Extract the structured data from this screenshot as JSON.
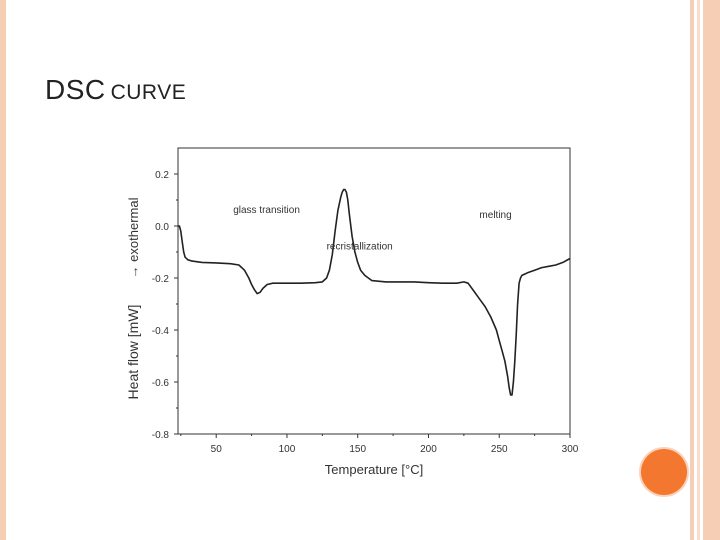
{
  "slide": {
    "title_big": "DSC",
    "title_small": "CURVE",
    "colors": {
      "frame": "#F6CDB5",
      "frame_light": "#F9DCCB",
      "accent_circle": "#F4772F",
      "accent_circle_edge": "#FBD2B8",
      "curve": "#222222"
    }
  },
  "chart_data": {
    "type": "line",
    "title": "",
    "xlabel": "Temperature [°C]",
    "ylabel": "Heat flow [mW]",
    "ylabel_secondary": "→ exothermal",
    "xlim": [
      23,
      300
    ],
    "ylim": [
      -0.8,
      0.3
    ],
    "xticks": [
      50,
      100,
      150,
      200,
      250,
      300
    ],
    "xtick_labels": [
      "50",
      "100",
      "150",
      "200",
      "250",
      "300"
    ],
    "yticks": [
      0.2,
      0.0,
      -0.2,
      -0.4,
      -0.6,
      -0.8
    ],
    "ytick_labels": [
      "0.2",
      "0.0",
      "-0.2",
      "-0.4",
      "-0.6",
      "-0.8"
    ],
    "grid": false,
    "legend": false,
    "annotations": [
      {
        "text": "glass transition",
        "x": 62,
        "y": 0.05
      },
      {
        "text": "recristallization",
        "x": 128,
        "y": -0.09
      },
      {
        "text": "melting",
        "x": 236,
        "y": 0.03
      }
    ],
    "series": [
      {
        "x": [
          23,
          24,
          25,
          26,
          27,
          28,
          30,
          33,
          40,
          50,
          60,
          66,
          70,
          73,
          75,
          77,
          79,
          81,
          83,
          86,
          90,
          95,
          100,
          110,
          120,
          125,
          128,
          130,
          132,
          134,
          136,
          138,
          139,
          140,
          141,
          142,
          143,
          144,
          146,
          148,
          150,
          152,
          155,
          160,
          170,
          180,
          190,
          200,
          210,
          220,
          225,
          228,
          232,
          236,
          240,
          244,
          248,
          250,
          252,
          254,
          256,
          257,
          258,
          259,
          260,
          261,
          262,
          263,
          264,
          265,
          266,
          268,
          270,
          275,
          280,
          285,
          290,
          295,
          300
        ],
        "y": [
          0.0,
          0.0,
          -0.02,
          -0.06,
          -0.1,
          -0.12,
          -0.13,
          -0.135,
          -0.14,
          -0.142,
          -0.145,
          -0.15,
          -0.17,
          -0.2,
          -0.225,
          -0.245,
          -0.26,
          -0.255,
          -0.24,
          -0.225,
          -0.22,
          -0.22,
          -0.22,
          -0.22,
          -0.218,
          -0.215,
          -0.2,
          -0.17,
          -0.11,
          -0.02,
          0.06,
          0.11,
          0.13,
          0.14,
          0.14,
          0.13,
          0.1,
          0.05,
          -0.04,
          -0.1,
          -0.14,
          -0.17,
          -0.19,
          -0.21,
          -0.215,
          -0.215,
          -0.215,
          -0.218,
          -0.22,
          -0.22,
          -0.215,
          -0.22,
          -0.25,
          -0.28,
          -0.31,
          -0.35,
          -0.4,
          -0.44,
          -0.48,
          -0.52,
          -0.58,
          -0.62,
          -0.65,
          -0.65,
          -0.6,
          -0.52,
          -0.42,
          -0.3,
          -0.22,
          -0.2,
          -0.19,
          -0.185,
          -0.18,
          -0.17,
          -0.16,
          -0.155,
          -0.15,
          -0.14,
          -0.125
        ]
      }
    ]
  }
}
